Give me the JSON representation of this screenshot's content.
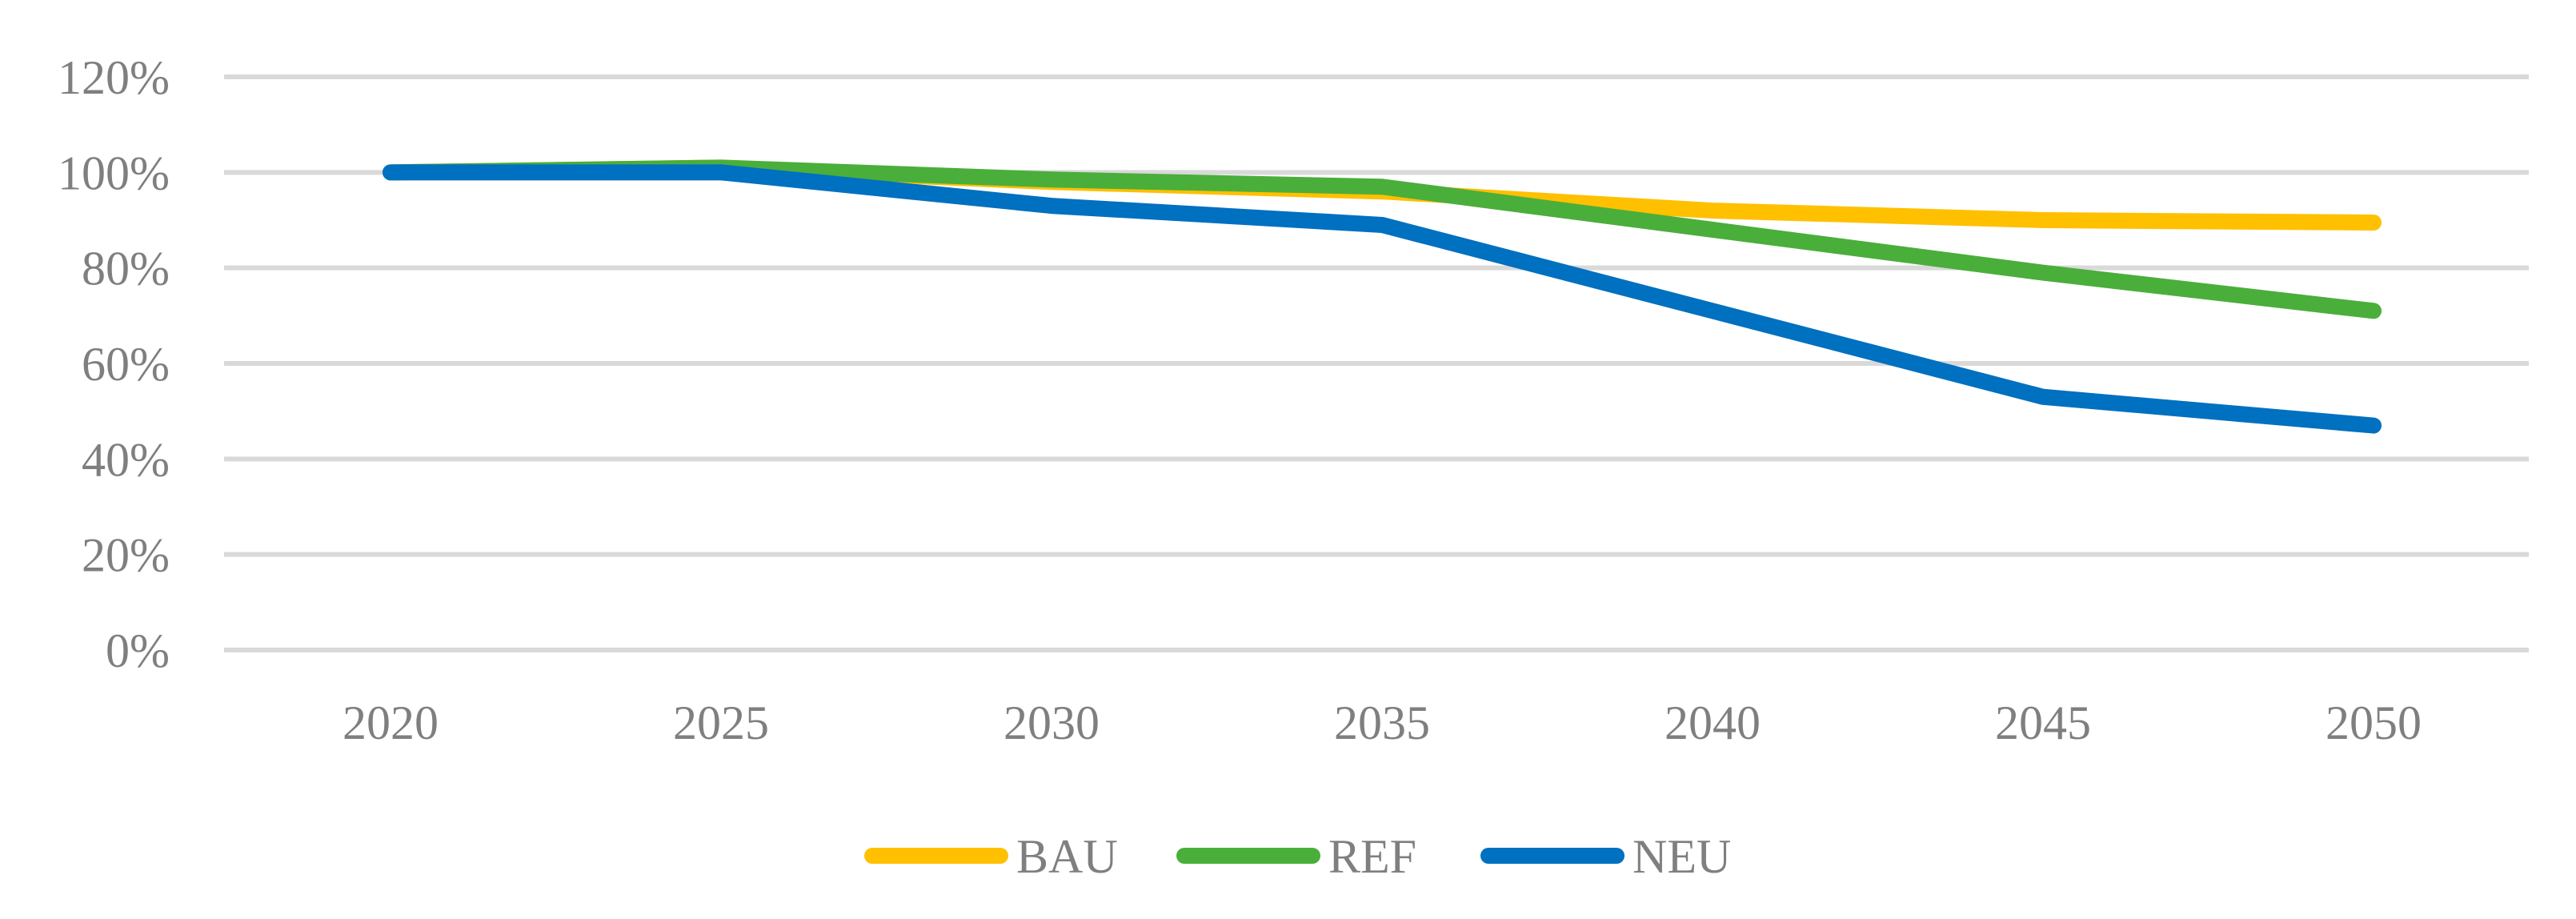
{
  "chart_data": {
    "type": "line",
    "title": "",
    "xlabel": "",
    "ylabel": "",
    "categories": [
      "2020",
      "2025",
      "2030",
      "2035",
      "2040",
      "2045",
      "2050"
    ],
    "ylim": [
      0,
      120
    ],
    "y_ticks": [
      "0%",
      "20%",
      "40%",
      "60%",
      "80%",
      "100%",
      "120%"
    ],
    "y_tick_values": [
      0,
      20,
      40,
      60,
      80,
      100,
      120
    ],
    "grid": "horizontal",
    "legend_position": "bottom",
    "series": [
      {
        "name": "BAU",
        "color": "#FFC000",
        "values": [
          100,
          101,
          98,
          96,
          92,
          90,
          89.5
        ]
      },
      {
        "name": "REF",
        "color": "#4AAE3B",
        "values": [
          100,
          101,
          98.5,
          97,
          88,
          79,
          71
        ]
      },
      {
        "name": "NEU",
        "color": "#0070C0",
        "values": [
          100,
          100,
          93,
          89,
          71,
          53,
          47
        ]
      }
    ]
  }
}
